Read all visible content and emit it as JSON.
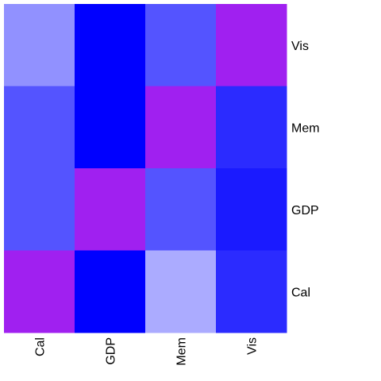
{
  "chart_data": {
    "type": "heatmap",
    "columns": [
      "Cal",
      "GDP",
      "Mem",
      "Vis"
    ],
    "rows": [
      "Vis",
      "Mem",
      "GDP",
      "Cal"
    ],
    "values": [
      [
        0.57,
        0.0,
        0.33,
        null
      ],
      [
        0.33,
        0.0,
        null,
        0.17
      ],
      [
        0.33,
        null,
        0.33,
        0.1
      ],
      [
        null,
        0.0,
        0.67,
        0.17
      ]
    ],
    "diagonal_color": "#A020F0",
    "color_scale": {
      "low": "#0000FF",
      "high": "#FFFFFF"
    }
  }
}
